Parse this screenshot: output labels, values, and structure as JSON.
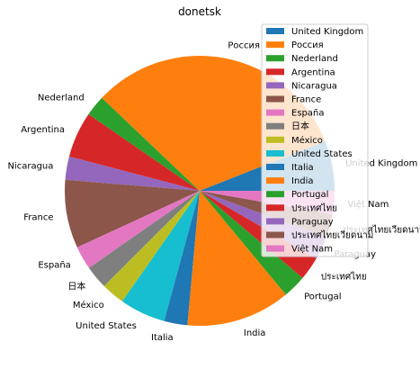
{
  "chart_data": {
    "type": "pie",
    "title": "donetsk",
    "labels": [
      "United Kingdom",
      "Россия",
      "Nederland",
      "Argentina",
      "Nicaragua",
      "France",
      "España",
      "日本",
      "México",
      "United States",
      "Italia",
      "India",
      "Portugal",
      "ประเทศไทย",
      "Paraguay",
      "ประเทศไทยเวียดนาม",
      "Việt Nam"
    ],
    "values": [
      6,
      32,
      2.5,
      5.5,
      2.8,
      8.2,
      2.8,
      2.8,
      2.8,
      5.5,
      2.8,
      12.5,
      2.8,
      2.8,
      2.8,
      2.8,
      2.8
    ],
    "colors": [
      "#1f77b4",
      "#ff7f0e",
      "#2ca02c",
      "#d62728",
      "#9467bd",
      "#8c564b",
      "#e377c2",
      "#7f7f7f",
      "#bcbd22",
      "#17becf",
      "#1f77b4",
      "#ff7f0e",
      "#2ca02c",
      "#d62728",
      "#9467bd",
      "#8c564b",
      "#e377c2"
    ],
    "start_angle_deg": 0,
    "direction": "counterclockwise",
    "legend_position": "upper right"
  }
}
